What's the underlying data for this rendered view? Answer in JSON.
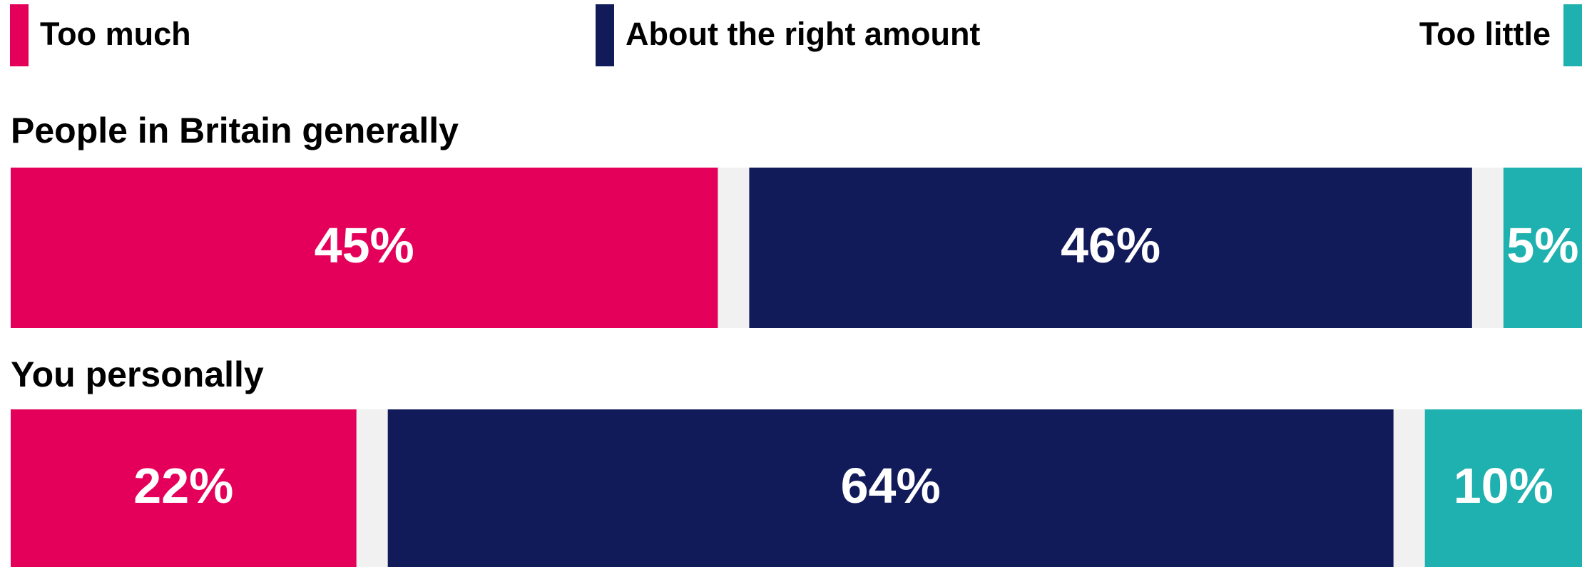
{
  "colors": {
    "too_much": "#e4005a",
    "about_right": "#121b5a",
    "too_little": "#1fb1af",
    "gap": "#f1f1f1"
  },
  "chart_data": {
    "type": "bar",
    "orientation": "horizontal",
    "stacked": true,
    "legend_position": "top",
    "grid": false,
    "legend": [
      "Too much",
      "About the right amount",
      "Too little"
    ],
    "categories": [
      "People in Britain generally",
      "You personally"
    ],
    "series": [
      {
        "name": "Too much",
        "values": [
          45,
          22
        ],
        "labels": [
          "45%",
          "22%"
        ]
      },
      {
        "name": "About the right amount",
        "values": [
          46,
          64
        ],
        "labels": [
          "46%",
          "64%"
        ]
      },
      {
        "name": "Too little",
        "values": [
          5,
          10
        ],
        "labels": [
          "5%",
          "10%"
        ]
      }
    ]
  }
}
